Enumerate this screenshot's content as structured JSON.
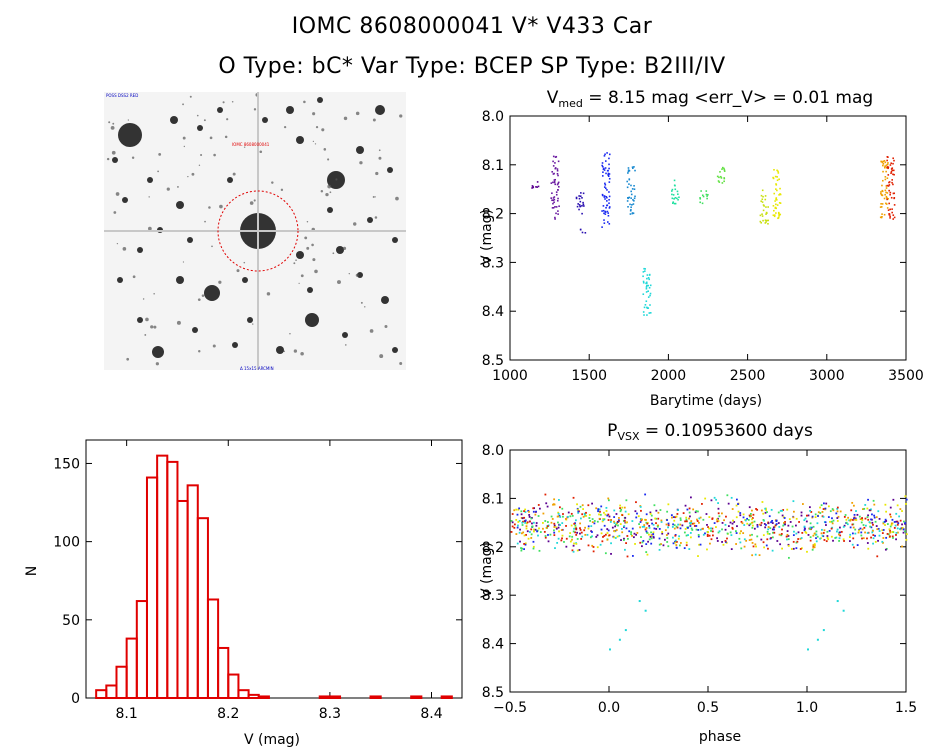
{
  "header": {
    "line1": "IOMC 8608000041     V* V433 Car",
    "line2": "O Type: bC*  Var Type: BCEP  SP Type: B2III/IV"
  },
  "chart_data": [
    {
      "type": "scatter",
      "panel": "light-curve",
      "title": "V_med = 8.15 mag <err_V> = 0.01 mag",
      "title_parts": {
        "v": "V",
        "sub": "med",
        "rest": " = 8.15 mag <err_V> = 0.01 mag"
      },
      "xlabel": "Barytime (days)",
      "ylabel": "V (mag)",
      "xlim": [
        1000,
        3500
      ],
      "ylim": [
        8.5,
        8.0
      ],
      "xticks": [
        "1000",
        "1500",
        "2000",
        "2500",
        "3000",
        "3500"
      ],
      "yticks": [
        "8.0",
        "8.1",
        "8.2",
        "8.3",
        "8.4",
        "8.5"
      ],
      "groups": [
        {
          "x": 1150,
          "ymin": 8.13,
          "ymax": 8.15,
          "color": "#5a0090"
        },
        {
          "x": 1280,
          "ymin": 8.08,
          "ymax": 8.21,
          "color": "#6a1aa0"
        },
        {
          "x": 1440,
          "ymin": 8.15,
          "ymax": 8.2,
          "color": "#2a10b0"
        },
        {
          "x": 1460,
          "ymin": 8.23,
          "ymax": 8.24,
          "color": "#2a10b0"
        },
        {
          "x": 1600,
          "ymin": 8.07,
          "ymax": 8.23,
          "color": "#1a2af0"
        },
        {
          "x": 1760,
          "ymin": 8.1,
          "ymax": 8.2,
          "color": "#1a8ad0"
        },
        {
          "x": 1860,
          "ymin": 8.31,
          "ymax": 8.41,
          "color": "#20d8d8"
        },
        {
          "x": 2040,
          "ymin": 8.13,
          "ymax": 8.18,
          "color": "#20e0a0"
        },
        {
          "x": 2220,
          "ymin": 8.15,
          "ymax": 8.18,
          "color": "#40e060"
        },
        {
          "x": 2330,
          "ymin": 8.1,
          "ymax": 8.14,
          "color": "#60e040"
        },
        {
          "x": 2600,
          "ymin": 8.15,
          "ymax": 8.22,
          "color": "#c8e010"
        },
        {
          "x": 2680,
          "ymin": 8.1,
          "ymax": 8.21,
          "color": "#e8e800"
        },
        {
          "x": 3360,
          "ymin": 8.09,
          "ymax": 8.22,
          "color": "#f0a000"
        },
        {
          "x": 3400,
          "ymin": 8.08,
          "ymax": 8.21,
          "color": "#e02000"
        }
      ]
    },
    {
      "type": "bar",
      "panel": "histogram",
      "title": "",
      "xlabel": "V (mag)",
      "ylabel": "N",
      "xlim": [
        8.06,
        8.43
      ],
      "ylim": [
        0,
        165
      ],
      "xticks": [
        "8.1",
        "8.2",
        "8.3",
        "8.4"
      ],
      "yticks": [
        "0",
        "50",
        "100",
        "150"
      ],
      "bin_width": 0.01,
      "bins": [
        {
          "x": 8.075,
          "n": 5
        },
        {
          "x": 8.085,
          "n": 8
        },
        {
          "x": 8.095,
          "n": 20
        },
        {
          "x": 8.105,
          "n": 38
        },
        {
          "x": 8.115,
          "n": 62
        },
        {
          "x": 8.125,
          "n": 141
        },
        {
          "x": 8.135,
          "n": 155
        },
        {
          "x": 8.145,
          "n": 151
        },
        {
          "x": 8.155,
          "n": 126
        },
        {
          "x": 8.165,
          "n": 136
        },
        {
          "x": 8.175,
          "n": 115
        },
        {
          "x": 8.185,
          "n": 63
        },
        {
          "x": 8.195,
          "n": 32
        },
        {
          "x": 8.205,
          "n": 15
        },
        {
          "x": 8.215,
          "n": 5
        },
        {
          "x": 8.225,
          "n": 2
        },
        {
          "x": 8.235,
          "n": 1
        },
        {
          "x": 8.295,
          "n": 1
        },
        {
          "x": 8.305,
          "n": 1
        },
        {
          "x": 8.345,
          "n": 1
        },
        {
          "x": 8.385,
          "n": 1
        },
        {
          "x": 8.415,
          "n": 1
        }
      ]
    },
    {
      "type": "scatter",
      "panel": "phase-curve",
      "title": "P_VSX = 0.10953600 days",
      "title_parts": {
        "v": "P",
        "sub": "VSX",
        "rest": " = 0.10953600 days"
      },
      "xlabel": "phase",
      "ylabel": "V (mag)",
      "xlim": [
        -0.5,
        1.5
      ],
      "ylim": [
        8.5,
        8.0
      ],
      "xticks": [
        "−0.5",
        "0.0",
        "0.5",
        "1.0",
        "1.5"
      ],
      "yticks": [
        "8.0",
        "8.1",
        "8.2",
        "8.3",
        "8.4",
        "8.5"
      ],
      "band": {
        "ymin": 8.08,
        "ymax": 8.23,
        "colors": [
          "#e02000",
          "#1a2af0",
          "#e8e800",
          "#5a0090",
          "#20d8d8",
          "#40e060",
          "#f0a000"
        ]
      },
      "outliers": [
        {
          "x": 0.0,
          "y": 8.41
        },
        {
          "x": 0.05,
          "y": 8.39
        },
        {
          "x": 0.08,
          "y": 8.37
        },
        {
          "x": 0.15,
          "y": 8.31
        },
        {
          "x": 0.18,
          "y": 8.33
        },
        {
          "x": 1.0,
          "y": 8.41
        },
        {
          "x": 1.05,
          "y": 8.39
        },
        {
          "x": 1.08,
          "y": 8.37
        },
        {
          "x": 1.15,
          "y": 8.31
        },
        {
          "x": 1.18,
          "y": 8.33
        }
      ],
      "outlier_color": "#20d8d8"
    }
  ],
  "thumbnail": {
    "label_top_left": "POSS DSS2 RED",
    "label_center": "IOMC 8608000041",
    "label_bottom_center": "Δ 15x15 ARCMIN"
  }
}
